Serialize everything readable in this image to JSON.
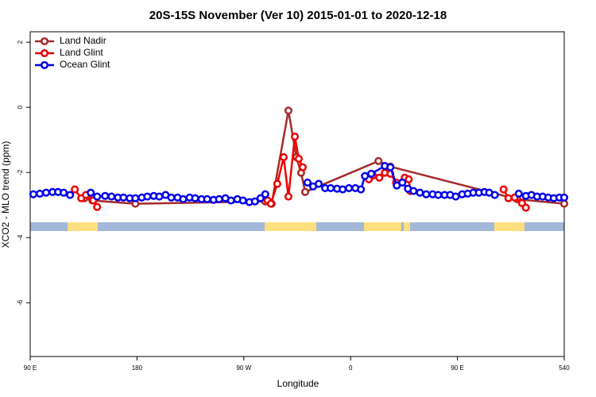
{
  "chart_data": {
    "type": "line",
    "title": "20S-15S November (Ver 10)   2015-01-01 to 2020-12-18",
    "x_label": "Longitude",
    "y_label": "XCO2 - MLO trend (ppm)",
    "xlim": [
      90,
      540
    ],
    "ylim": [
      -7.65,
      2.32
    ],
    "xticks": [
      {
        "value": 90,
        "label": "90 E"
      },
      180,
      {
        "value": 270,
        "label": "90 W"
      },
      {
        "value": 360,
        "label": "0"
      },
      {
        "value": 450,
        "label": "90 E"
      },
      540
    ],
    "yticks": [
      2,
      0,
      -2,
      -4,
      -6
    ],
    "legend": "top-left",
    "series": [
      {
        "name": "Land Nadir",
        "color": "#a52a2a",
        "x": [
          135.7,
          142.4,
          178.6,
          288.1,
          293.5,
          307.6,
          314.3,
          318.3,
          321.7,
          383.5,
          393.5,
          500.4,
          540
        ],
        "values": [
          -2.79,
          -2.86,
          -2.96,
          -2.89,
          -2.96,
          -0.1,
          -1.53,
          -2.01,
          -2.6,
          -1.65,
          -1.82,
          -2.82,
          -2.96
        ]
      },
      {
        "name": "Land Glint",
        "color": "#ee0000",
        "x": [
          127.6,
          133,
          137,
          143.1,
          146.4,
          200,
          290.1,
          292.8,
          298.2,
          303.6,
          307.6,
          313,
          316.3,
          319.7,
          350,
          375.4,
          378.8,
          384.2,
          388.8,
          393.5,
          398.3,
          405.6,
          409,
          410.3,
          450,
          488.9,
          493,
          498.3,
          504.4,
          507.7
        ],
        "values": [
          -2.52,
          -2.79,
          -2.69,
          -2.86,
          -3.06,
          null,
          -2.86,
          -2.96,
          -2.35,
          -1.53,
          -2.74,
          -0.9,
          -1.58,
          -1.84,
          null,
          -2.21,
          -2.09,
          -2.16,
          -2.01,
          -2.04,
          -2.31,
          -2.16,
          -2.21,
          -2.57,
          null,
          -2.52,
          -2.79,
          -2.77,
          -2.94,
          -3.08
        ]
      },
      {
        "name": "Ocean Glint",
        "color": "#0000ee",
        "x": [
          92.7,
          98.1,
          103.4,
          108.8,
          113.5,
          118.2,
          123.6,
          130,
          141,
          146.4,
          153.1,
          158.5,
          163.9,
          168.6,
          173.9,
          178.6,
          184,
          188.7,
          194.1,
          198.8,
          204.1,
          208.9,
          214.2,
          218.9,
          224.3,
          229,
          234.4,
          239.1,
          244.5,
          249.2,
          254.5,
          259.2,
          264.6,
          269.3,
          274.7,
          279.4,
          284.1,
          288.1,
          300,
          323.7,
          328.4,
          333.1,
          338.5,
          343.2,
          348.6,
          353.3,
          358.6,
          364,
          368.7,
          372.1,
          377.4,
          388.8,
          393.5,
          398.9,
          403.6,
          408.3,
          413,
          418.4,
          423.7,
          429.1,
          433.8,
          439.2,
          443.9,
          448.6,
          454,
          458.7,
          463.4,
          468.1,
          472.8,
          476.8,
          481.5,
          490,
          501.7,
          507.7,
          512.4,
          517.1,
          521.9,
          526.6,
          531.2,
          535.9,
          540
        ],
        "values": [
          -2.67,
          -2.65,
          -2.62,
          -2.6,
          -2.6,
          -2.62,
          -2.69,
          null,
          -2.62,
          -2.74,
          -2.72,
          -2.74,
          -2.77,
          -2.77,
          -2.79,
          -2.79,
          -2.77,
          -2.74,
          -2.72,
          -2.74,
          -2.69,
          -2.77,
          -2.77,
          -2.82,
          -2.77,
          -2.79,
          -2.82,
          -2.82,
          -2.84,
          -2.82,
          -2.79,
          -2.86,
          -2.82,
          -2.86,
          -2.91,
          -2.89,
          -2.79,
          -2.67,
          null,
          -2.31,
          -2.43,
          -2.35,
          -2.48,
          -2.48,
          -2.5,
          -2.52,
          -2.48,
          -2.48,
          -2.52,
          -2.11,
          -2.04,
          -1.8,
          -1.84,
          -2.4,
          -2.31,
          -2.5,
          -2.57,
          -2.62,
          -2.67,
          -2.67,
          -2.69,
          -2.69,
          -2.69,
          -2.74,
          -2.67,
          -2.65,
          -2.62,
          -2.62,
          -2.6,
          -2.62,
          -2.69,
          null,
          -2.65,
          -2.72,
          -2.69,
          -2.74,
          -2.74,
          -2.77,
          -2.79,
          -2.77,
          -2.77
        ]
      }
    ]
  }
}
